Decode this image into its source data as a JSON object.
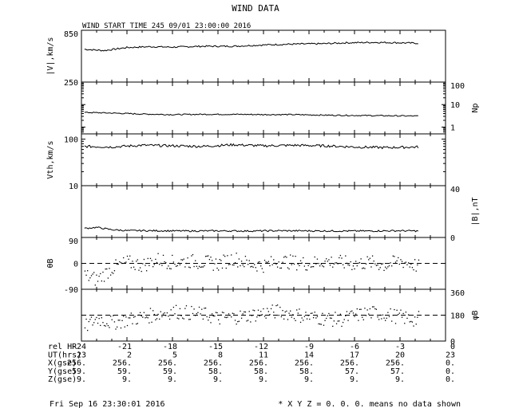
{
  "chart_data": {
    "type": "line",
    "title": "WIND DATA",
    "subtitle": "WIND START TIME 245 09/01 23:00:00 2016",
    "x_ticks": [
      -24,
      -21,
      -18,
      -15,
      -12,
      -9,
      -6,
      -3,
      0
    ],
    "xlim": [
      -24,
      0
    ],
    "x_ticks_note_row_labels": [
      "rel HR",
      "UT(hrs)",
      "X(gse)",
      "Y(gse)",
      "Z(gse)"
    ],
    "x_rows": [
      {
        "label": "rel HR",
        "values": [
          "-24",
          "-21",
          "-18",
          "-15",
          "-12",
          "-9",
          "-6",
          "-3",
          "0"
        ]
      },
      {
        "label": "UT(hrs)",
        "values": [
          "23",
          "2",
          "5",
          "8",
          "11",
          "14",
          "17",
          "20",
          "23"
        ]
      },
      {
        "label": "X(gse)",
        "values": [
          "256.",
          "256.",
          "256.",
          "256.",
          "256.",
          "256.",
          "256.",
          "256.",
          "0."
        ]
      },
      {
        "label": "Y(gse)",
        "values": [
          "59.",
          "59.",
          "59.",
          "58.",
          "58.",
          "58.",
          "57.",
          "57.",
          "0."
        ]
      },
      {
        "label": "Z(gse)",
        "values": [
          "9.",
          "9.",
          "9.",
          "9.",
          "9.",
          "9.",
          "9.",
          "9.",
          "0."
        ]
      }
    ],
    "panels": [
      {
        "id": "speed",
        "ylabel": "|V|,km/s",
        "label_side": "left",
        "scale": "linear",
        "ylim": [
          250,
          850
        ],
        "ticks": [
          {
            "v": 850,
            "label": "850"
          },
          {
            "v": 250,
            "label": "250"
          }
        ],
        "series": {
          "x": [
            -23.8,
            -22.5,
            -21,
            -19.5,
            -18,
            -16,
            -14,
            -12,
            -10,
            -8,
            -6.5,
            -4.5,
            -3,
            -1.8
          ],
          "y": [
            630,
            615,
            650,
            660,
            655,
            665,
            665,
            680,
            690,
            695,
            705,
            710,
            705,
            700
          ]
        }
      },
      {
        "id": "density",
        "ylabel": "Np",
        "label_side": "right",
        "scale": "log",
        "ylim": [
          0.5,
          100
        ],
        "ticks": [
          {
            "v": 100,
            "label": "100"
          },
          {
            "v": 10,
            "label": "10"
          },
          {
            "v": 1,
            "label": "1"
          }
        ],
        "series": {
          "x": [
            -23.8,
            -22,
            -20,
            -18,
            -16,
            -14,
            -12,
            -10,
            -8,
            -6,
            -4,
            -1.8
          ],
          "y": [
            4.5,
            4.2,
            3.8,
            3.6,
            3.7,
            3.7,
            3.6,
            3.6,
            3.4,
            3.3,
            3.2,
            3.1
          ]
        }
      },
      {
        "id": "thermal",
        "ylabel": "Vth,km/s",
        "label_side": "left",
        "scale": "log",
        "ylim": [
          10,
          130
        ],
        "ticks": [
          {
            "v": 100,
            "label": "100"
          },
          {
            "v": 10,
            "label": "10"
          }
        ],
        "series": {
          "x": [
            -23.8,
            -22,
            -20,
            -18,
            -16,
            -14,
            -12,
            -10,
            -8,
            -6,
            -4,
            -1.8
          ],
          "y": [
            70,
            68,
            74,
            72,
            70,
            76,
            72,
            74,
            72,
            68,
            66,
            68
          ]
        }
      },
      {
        "id": "bfield",
        "ylabel": "|B|,nT",
        "label_side": "right",
        "scale": "linear",
        "ylim": [
          0,
          40
        ],
        "ticks": [
          {
            "v": 40,
            "label": "40"
          },
          {
            "v": 0,
            "label": "0"
          }
        ],
        "series": {
          "x": [
            -23.8,
            -23,
            -22,
            -21,
            -19,
            -17,
            -15,
            -13,
            -11,
            -9,
            -7,
            -5,
            -3,
            -1.8
          ],
          "y": [
            7,
            7.8,
            6,
            5.3,
            5.2,
            5,
            5.1,
            5,
            5.2,
            5.1,
            5,
            5,
            5.2,
            5
          ]
        }
      },
      {
        "id": "theta",
        "ylabel": "θB",
        "label_side": "left",
        "scale": "linear",
        "ylim": [
          -90,
          90
        ],
        "ticks": [
          {
            "v": 90,
            "label": "90"
          },
          {
            "v": 0,
            "label": "0"
          },
          {
            "v": -90,
            "label": "-90"
          }
        ],
        "reference_line": 0,
        "style": "scatter",
        "series": {
          "x": [
            -23.8,
            -23,
            -22,
            -21,
            -20,
            -19,
            -18,
            -17,
            -16,
            -15,
            -14,
            -13,
            -12,
            -11,
            -10,
            -9,
            -8,
            -7,
            -6,
            -5,
            -4,
            -3,
            -2,
            -1.8
          ],
          "y": [
            -40,
            -55,
            -15,
            5,
            -5,
            15,
            5,
            10,
            5,
            0,
            20,
            0,
            -5,
            10,
            5,
            0,
            10,
            5,
            0,
            5,
            -5,
            10,
            -5,
            -10
          ]
        }
      },
      {
        "id": "phi",
        "ylabel": "φB",
        "label_side": "right",
        "scale": "linear",
        "ylim": [
          0,
          360
        ],
        "ticks": [
          {
            "v": 360,
            "label": "360"
          },
          {
            "v": 180,
            "label": "180"
          },
          {
            "v": 0,
            "label": "0"
          }
        ],
        "reference_line": 180,
        "style": "scatter",
        "series": {
          "x": [
            -23.8,
            -23,
            -22,
            -21,
            -20,
            -19,
            -18,
            -17,
            -16,
            -15,
            -14,
            -13,
            -12,
            -11,
            -10,
            -9,
            -8,
            -7,
            -6,
            -5,
            -4,
            -3,
            -2,
            -1.8
          ],
          "y": [
            100,
            160,
            130,
            150,
            170,
            190,
            210,
            200,
            190,
            160,
            170,
            180,
            200,
            210,
            190,
            170,
            160,
            150,
            180,
            200,
            190,
            170,
            150,
            160
          ]
        }
      }
    ],
    "grid": false,
    "legend": "none"
  },
  "footer": {
    "timestamp": "Fri Sep 16 23:30:01 2016",
    "note": "* X Y Z = 0. 0. 0. means no data shown"
  }
}
